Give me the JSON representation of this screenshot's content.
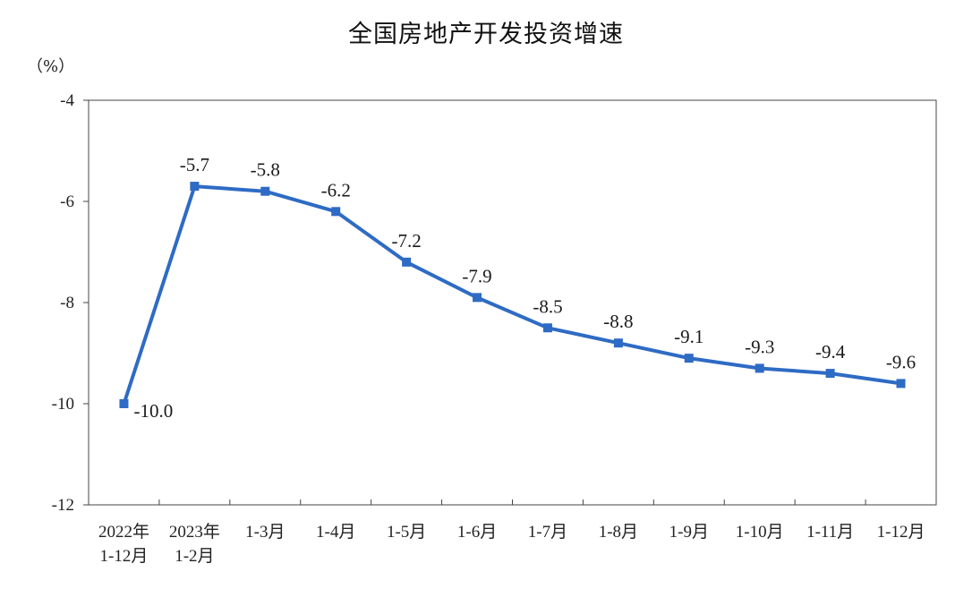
{
  "chart_data": {
    "type": "line",
    "title": "全国房地产开发投资增速",
    "unit_label": "（%）",
    "xlabel": "",
    "ylabel": "",
    "ylim": [
      -12,
      -4
    ],
    "yticks": [
      -4,
      -6,
      -8,
      -10,
      -12
    ],
    "categories": [
      [
        "2022年",
        "1-12月"
      ],
      [
        "2023年",
        "1-2月"
      ],
      [
        "1-3月"
      ],
      [
        "1-4月"
      ],
      [
        "1-5月"
      ],
      [
        "1-6月"
      ],
      [
        "1-7月"
      ],
      [
        "1-8月"
      ],
      [
        "1-9月"
      ],
      [
        "1-10月"
      ],
      [
        "1-11月"
      ],
      [
        "1-12月"
      ]
    ],
    "values": [
      -10.0,
      -5.7,
      -5.8,
      -6.2,
      -7.2,
      -7.9,
      -8.5,
      -8.8,
      -9.1,
      -9.3,
      -9.4,
      -9.6
    ],
    "data_labels": [
      "-10.0",
      "-5.7",
      "-5.8",
      "-6.2",
      "-7.2",
      "-7.9",
      "-8.5",
      "-8.8",
      "-9.1",
      "-9.3",
      "-9.4",
      "-9.6"
    ],
    "grid": false,
    "legend": "none",
    "line_color": "#2e6bc4",
    "axis_color": "#444444"
  }
}
